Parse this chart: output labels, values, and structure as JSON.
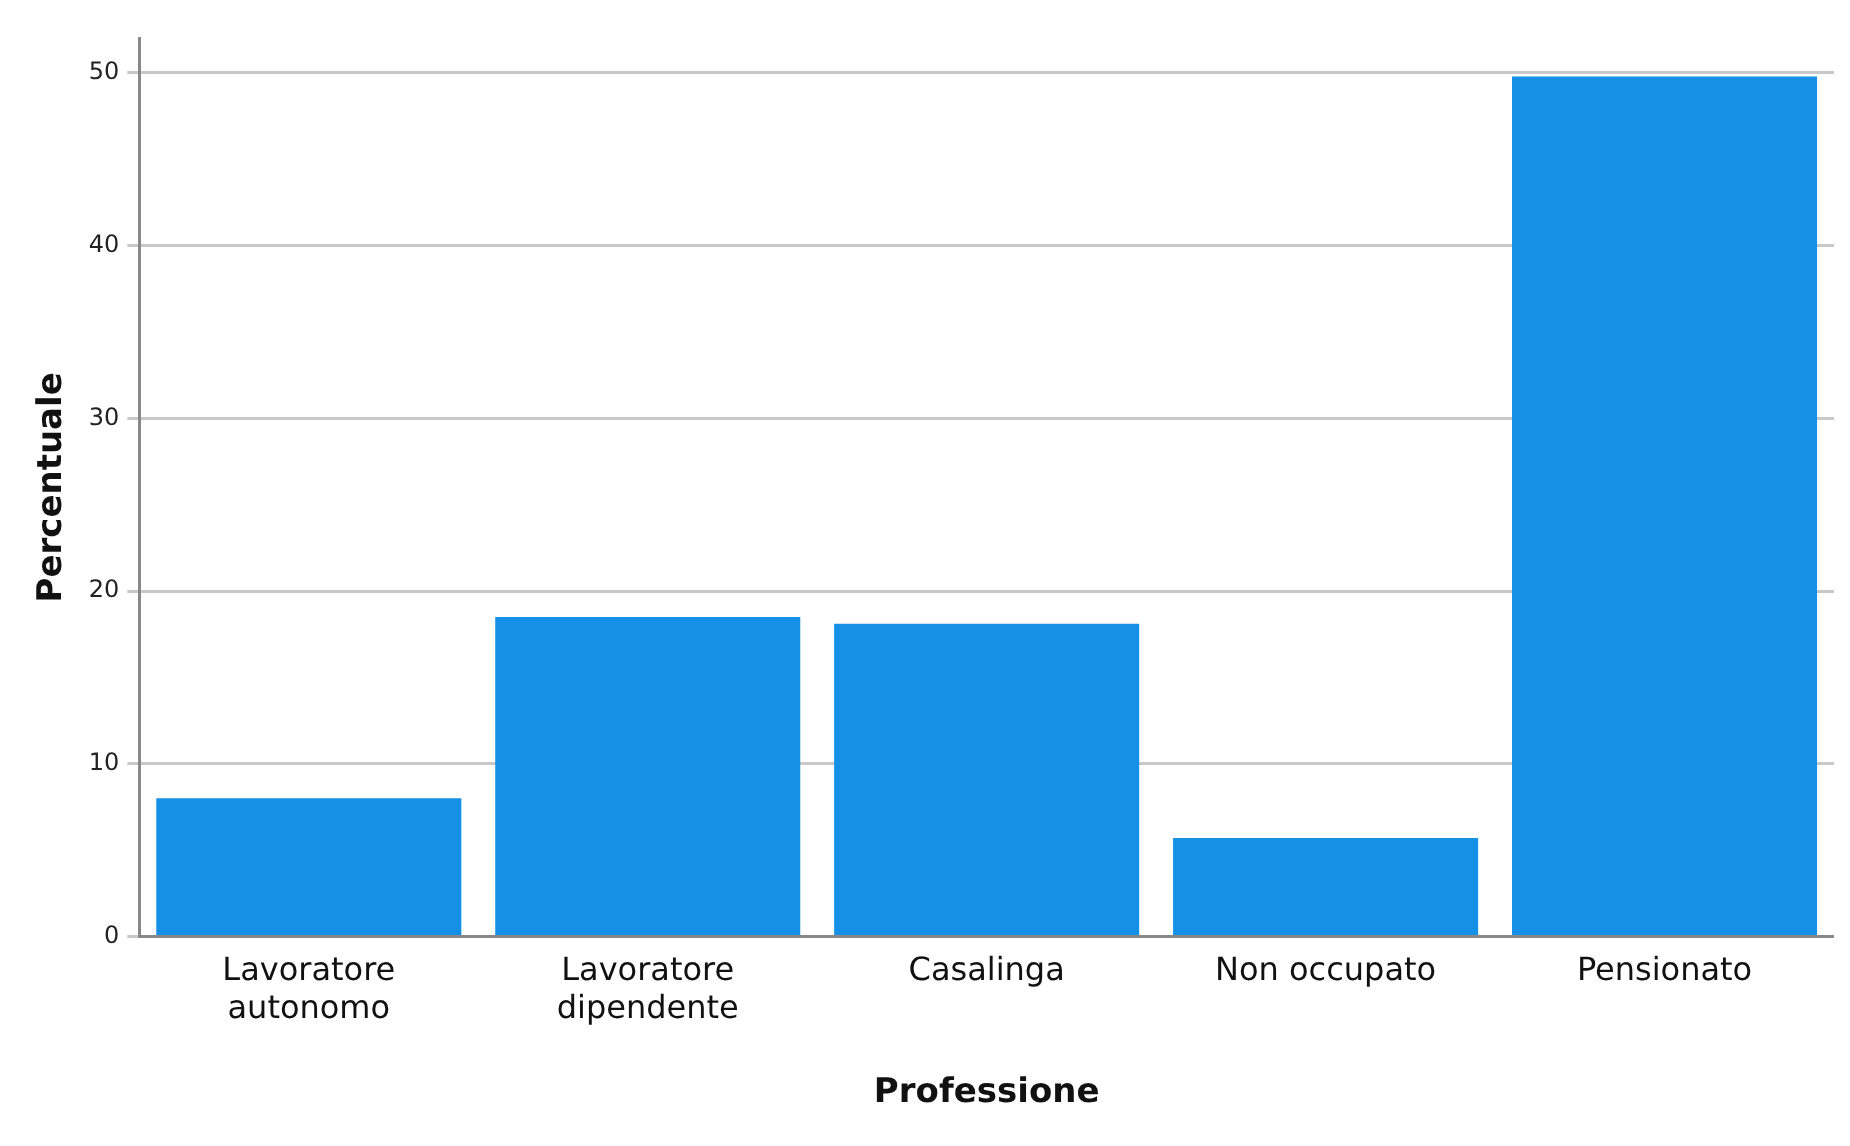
{
  "chart_data": {
    "type": "bar",
    "xlabel": "Professione",
    "ylabel": "Percentuale",
    "categories": [
      "Lavoratore autonomo",
      "Lavoratore dipendente",
      "Casalinga",
      "Non occupato",
      "Pensionato"
    ],
    "values": [
      8.0,
      18.5,
      18.1,
      5.7,
      49.8
    ],
    "color": "#1490e6",
    "ylim": [
      0,
      52
    ],
    "yticks": [
      0,
      10,
      20,
      30,
      40,
      50
    ],
    "grid": "y",
    "legend": false
  }
}
